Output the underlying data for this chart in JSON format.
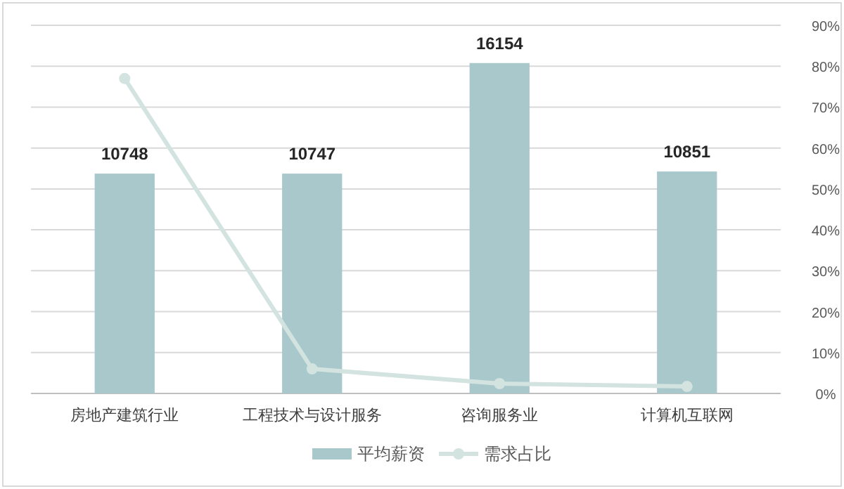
{
  "chart_data": {
    "type": "bar",
    "categories": [
      "房地产建筑行业",
      "工程技术与设计服务",
      "咨询服务业",
      "计算机互联网"
    ],
    "series": [
      {
        "name": "平均薪资",
        "color": "#a8c8cc",
        "values": [
          10748,
          10747,
          16154,
          10851
        ],
        "value_labels": [
          "10748",
          "10747",
          "16154",
          "10851"
        ]
      },
      {
        "name": "需求占比",
        "type": "line",
        "axis": "y2",
        "color": "#d3e3e0",
        "marker": "circle",
        "values": [
          77,
          6,
          2.4,
          1.7
        ]
      }
    ],
    "ylim": [
      0,
      18000
    ],
    "y2lim": [
      0,
      90
    ],
    "y2ticks": [
      {
        "value": 0,
        "label": "0%"
      },
      {
        "value": 10,
        "label": "10%"
      },
      {
        "value": 20,
        "label": "20%"
      },
      {
        "value": 30,
        "label": "30%"
      },
      {
        "value": 40,
        "label": "40%"
      },
      {
        "value": 50,
        "label": "50%"
      },
      {
        "value": 60,
        "label": "60%"
      },
      {
        "value": 70,
        "label": "70%"
      },
      {
        "value": 80,
        "label": "80%"
      },
      {
        "value": 90,
        "label": "90%"
      }
    ],
    "grid": "y",
    "legend": "bottom"
  }
}
